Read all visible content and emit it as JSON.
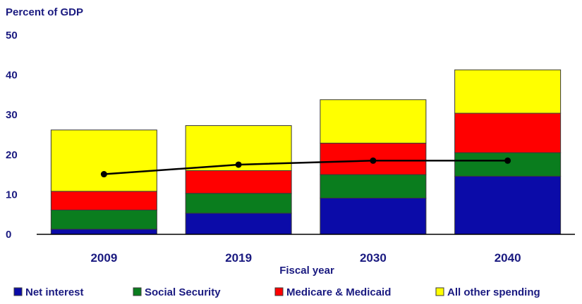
{
  "chart_data": {
    "type": "bar",
    "stacked": true,
    "title": "",
    "ylabel": "Percent of GDP",
    "xlabel": "Fiscal year",
    "ylim": [
      0,
      50
    ],
    "yticks": [
      "0",
      "10",
      "20",
      "30",
      "40",
      "50"
    ],
    "categories": [
      "2009",
      "2019",
      "2030",
      "2040"
    ],
    "series": [
      {
        "name": "Net interest",
        "color": "#0b0ba8",
        "values": [
          1.3,
          5.3,
          9.1,
          14.6
        ]
      },
      {
        "name": "Social Security",
        "color": "#0a7d1e",
        "values": [
          4.8,
          5.0,
          5.9,
          5.9
        ]
      },
      {
        "name": "Medicare & Medicaid",
        "color": "#ff0000",
        "values": [
          4.7,
          5.7,
          7.9,
          9.9
        ]
      },
      {
        "name": "All other spending",
        "color": "#ffff00",
        "values": [
          15.4,
          11.3,
          10.9,
          10.9
        ]
      }
    ],
    "line": {
      "color": "#000000",
      "values": [
        15.1,
        17.5,
        18.5,
        18.5
      ]
    },
    "grid": false,
    "legend_position": "bottom"
  }
}
